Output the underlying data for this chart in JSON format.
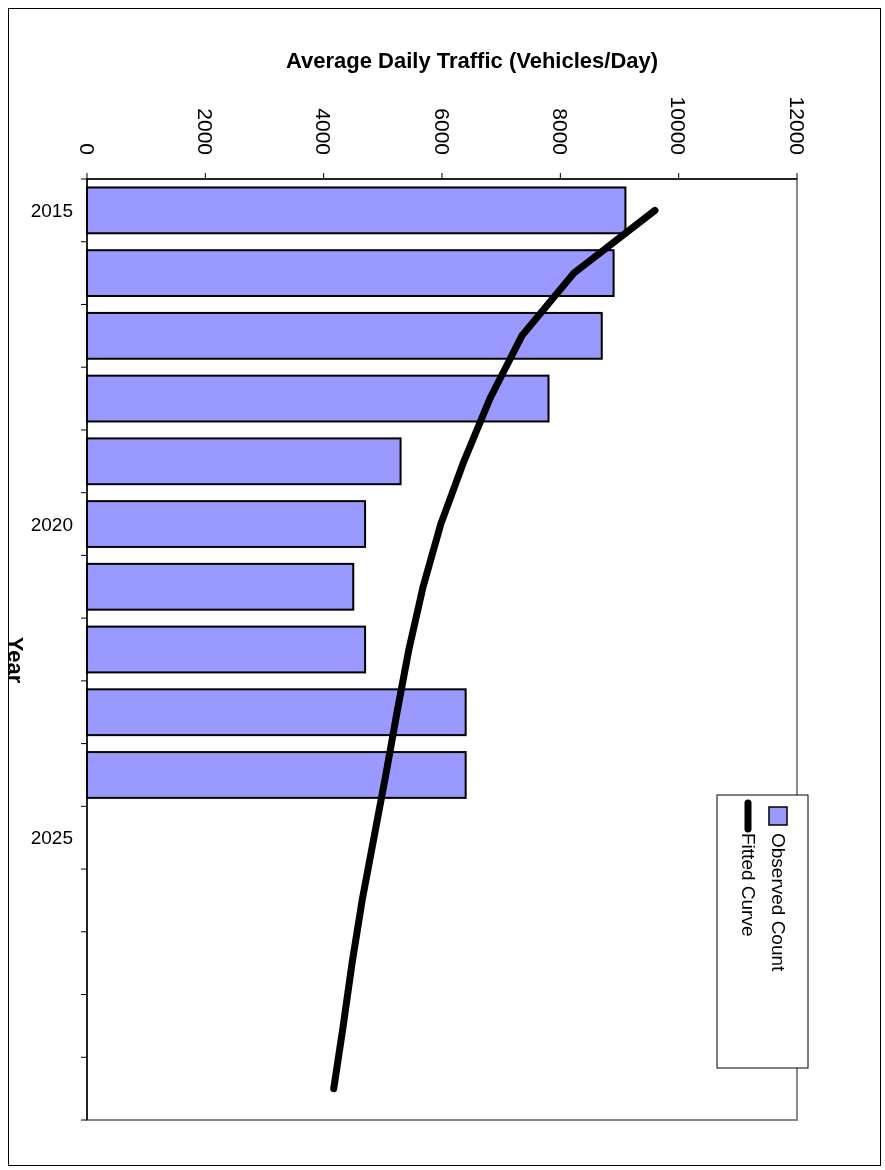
{
  "chart_data": {
    "type": "bar",
    "orientation": "horizontal",
    "xlabel": "Average Daily Traffic (Vehicles/Day)",
    "ylabel": "Year",
    "categories": [
      "2015",
      null,
      null,
      null,
      null,
      "2020",
      null,
      null,
      null,
      null,
      "2025",
      null,
      null,
      null,
      null
    ],
    "series": [
      {
        "name": "Observed Count",
        "color": "#9999ff",
        "values": [
          9100,
          8900,
          8700,
          7800,
          5300,
          4700,
          4500,
          4700,
          6400,
          6400,
          null,
          null,
          null,
          null,
          null
        ]
      },
      {
        "name": "Fitted Curve",
        "type": "line",
        "color": "#000000",
        "values": [
          9600,
          8230,
          7350,
          6810,
          6370,
          5980,
          5680,
          5440,
          5240,
          5050,
          4850,
          4650,
          4480,
          4330,
          4170
        ]
      }
    ],
    "xlim": [
      0,
      12000
    ],
    "xticks": [
      0,
      2000,
      4000,
      6000,
      8000,
      10000,
      12000
    ],
    "legend": "bottom right"
  }
}
